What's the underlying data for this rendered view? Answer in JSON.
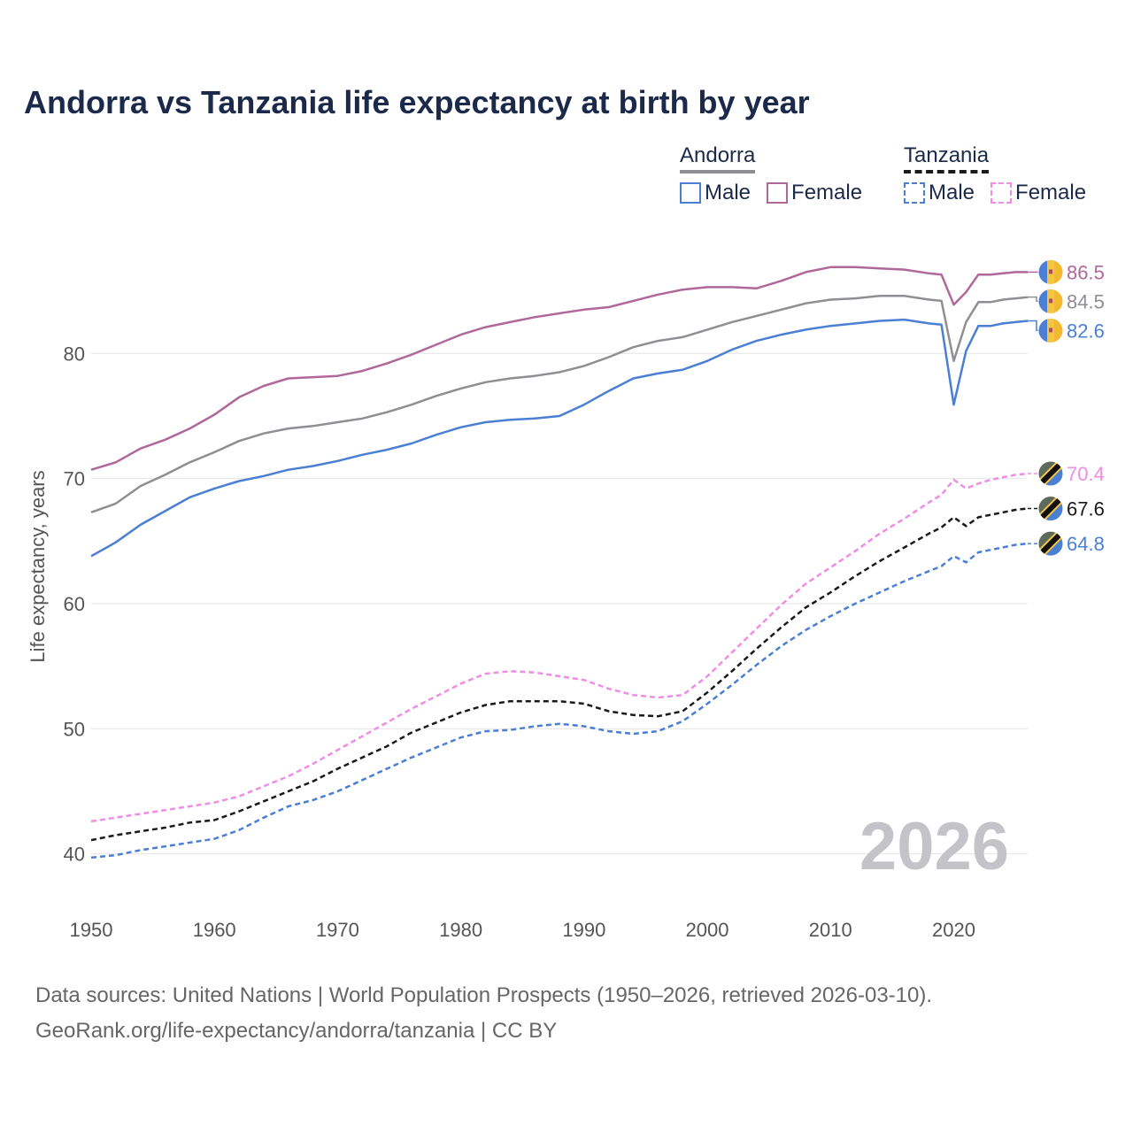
{
  "title": "Andorra vs Tanzania life expectancy at birth by year",
  "legend": {
    "andorra": {
      "label": "Andorra",
      "male": "Male",
      "female": "Female"
    },
    "tanzania": {
      "label": "Tanzania",
      "male": "Male",
      "female": "Female"
    }
  },
  "year_watermark": "2026",
  "source": {
    "line1": "Data sources: United Nations | World Population Prospects (1950–2026, retrieved 2026-03-10).",
    "line2": "GeoRank.org/life-expectancy/andorra/tanzania | CC BY"
  },
  "colors": {
    "male": "#4a7fd4",
    "female_andorra": "#b0679a",
    "both_andorra": "#8e8e93",
    "female_tanzania": "#f08ce6",
    "both_tanzania": "#1a1a1a"
  },
  "chart_data": {
    "type": "line",
    "ylabel": "Life expectancy, years",
    "xlabel": "",
    "xlim": [
      1950,
      2026
    ],
    "ylim": [
      37.5,
      89.5
    ],
    "x_ticks": [
      1950,
      1960,
      1970,
      1980,
      1990,
      2000,
      2010,
      2020
    ],
    "y_ticks": [
      40,
      50,
      60,
      70,
      80
    ],
    "grid": true,
    "series": [
      {
        "name": "Andorra Female",
        "country": "andorra",
        "sex": "female",
        "dashed": false,
        "end_label": "86.5",
        "points": [
          [
            1950,
            70.7
          ],
          [
            1952,
            71.3
          ],
          [
            1954,
            72.4
          ],
          [
            1956,
            73.1
          ],
          [
            1958,
            74.0
          ],
          [
            1960,
            75.1
          ],
          [
            1962,
            76.5
          ],
          [
            1964,
            77.4
          ],
          [
            1966,
            78.0
          ],
          [
            1968,
            78.1
          ],
          [
            1970,
            78.2
          ],
          [
            1972,
            78.6
          ],
          [
            1974,
            79.2
          ],
          [
            1976,
            79.9
          ],
          [
            1978,
            80.7
          ],
          [
            1980,
            81.5
          ],
          [
            1982,
            82.1
          ],
          [
            1984,
            82.5
          ],
          [
            1986,
            82.9
          ],
          [
            1988,
            83.2
          ],
          [
            1990,
            83.5
          ],
          [
            1992,
            83.7
          ],
          [
            1994,
            84.2
          ],
          [
            1996,
            84.7
          ],
          [
            1998,
            85.1
          ],
          [
            2000,
            85.3
          ],
          [
            2002,
            85.3
          ],
          [
            2004,
            85.2
          ],
          [
            2006,
            85.8
          ],
          [
            2008,
            86.5
          ],
          [
            2010,
            86.9
          ],
          [
            2012,
            86.9
          ],
          [
            2014,
            86.8
          ],
          [
            2016,
            86.7
          ],
          [
            2018,
            86.4
          ],
          [
            2019,
            86.3
          ],
          [
            2020,
            83.9
          ],
          [
            2021,
            84.9
          ],
          [
            2022,
            86.3
          ],
          [
            2023,
            86.3
          ],
          [
            2024,
            86.4
          ],
          [
            2025,
            86.5
          ],
          [
            2026,
            86.5
          ]
        ]
      },
      {
        "name": "Andorra Both",
        "country": "andorra",
        "sex": "both",
        "dashed": false,
        "end_label": "84.5",
        "points": [
          [
            1950,
            67.3
          ],
          [
            1952,
            68.0
          ],
          [
            1954,
            69.4
          ],
          [
            1956,
            70.3
          ],
          [
            1958,
            71.3
          ],
          [
            1960,
            72.1
          ],
          [
            1962,
            73.0
          ],
          [
            1964,
            73.6
          ],
          [
            1966,
            74.0
          ],
          [
            1968,
            74.2
          ],
          [
            1970,
            74.5
          ],
          [
            1972,
            74.8
          ],
          [
            1974,
            75.3
          ],
          [
            1976,
            75.9
          ],
          [
            1978,
            76.6
          ],
          [
            1980,
            77.2
          ],
          [
            1982,
            77.7
          ],
          [
            1984,
            78.0
          ],
          [
            1986,
            78.2
          ],
          [
            1988,
            78.5
          ],
          [
            1990,
            79.0
          ],
          [
            1992,
            79.7
          ],
          [
            1994,
            80.5
          ],
          [
            1996,
            81.0
          ],
          [
            1998,
            81.3
          ],
          [
            2000,
            81.9
          ],
          [
            2002,
            82.5
          ],
          [
            2004,
            83.0
          ],
          [
            2006,
            83.5
          ],
          [
            2008,
            84.0
          ],
          [
            2010,
            84.3
          ],
          [
            2012,
            84.4
          ],
          [
            2014,
            84.6
          ],
          [
            2016,
            84.6
          ],
          [
            2018,
            84.3
          ],
          [
            2019,
            84.2
          ],
          [
            2020,
            79.4
          ],
          [
            2021,
            82.5
          ],
          [
            2022,
            84.1
          ],
          [
            2023,
            84.1
          ],
          [
            2024,
            84.3
          ],
          [
            2025,
            84.4
          ],
          [
            2026,
            84.5
          ]
        ]
      },
      {
        "name": "Andorra Male",
        "country": "andorra",
        "sex": "male",
        "dashed": false,
        "end_label": "82.6",
        "points": [
          [
            1950,
            63.8
          ],
          [
            1952,
            64.9
          ],
          [
            1954,
            66.3
          ],
          [
            1956,
            67.4
          ],
          [
            1958,
            68.5
          ],
          [
            1960,
            69.2
          ],
          [
            1962,
            69.8
          ],
          [
            1964,
            70.2
          ],
          [
            1966,
            70.7
          ],
          [
            1968,
            71.0
          ],
          [
            1970,
            71.4
          ],
          [
            1972,
            71.9
          ],
          [
            1974,
            72.3
          ],
          [
            1976,
            72.8
          ],
          [
            1978,
            73.5
          ],
          [
            1980,
            74.1
          ],
          [
            1982,
            74.5
          ],
          [
            1984,
            74.7
          ],
          [
            1986,
            74.8
          ],
          [
            1988,
            75.0
          ],
          [
            1990,
            75.9
          ],
          [
            1992,
            77.0
          ],
          [
            1994,
            78.0
          ],
          [
            1996,
            78.4
          ],
          [
            1998,
            78.7
          ],
          [
            2000,
            79.4
          ],
          [
            2002,
            80.3
          ],
          [
            2004,
            81.0
          ],
          [
            2006,
            81.5
          ],
          [
            2008,
            81.9
          ],
          [
            2010,
            82.2
          ],
          [
            2012,
            82.4
          ],
          [
            2014,
            82.6
          ],
          [
            2016,
            82.7
          ],
          [
            2018,
            82.4
          ],
          [
            2019,
            82.3
          ],
          [
            2020,
            75.9
          ],
          [
            2021,
            80.2
          ],
          [
            2022,
            82.2
          ],
          [
            2023,
            82.2
          ],
          [
            2024,
            82.4
          ],
          [
            2025,
            82.5
          ],
          [
            2026,
            82.6
          ]
        ]
      },
      {
        "name": "Tanzania Female",
        "country": "tanzania",
        "sex": "female",
        "dashed": true,
        "end_label": "70.4",
        "points": [
          [
            1950,
            42.6
          ],
          [
            1952,
            42.9
          ],
          [
            1954,
            43.2
          ],
          [
            1956,
            43.5
          ],
          [
            1958,
            43.8
          ],
          [
            1960,
            44.1
          ],
          [
            1962,
            44.6
          ],
          [
            1964,
            45.4
          ],
          [
            1966,
            46.2
          ],
          [
            1968,
            47.2
          ],
          [
            1970,
            48.3
          ],
          [
            1972,
            49.4
          ],
          [
            1974,
            50.5
          ],
          [
            1976,
            51.6
          ],
          [
            1978,
            52.6
          ],
          [
            1980,
            53.6
          ],
          [
            1982,
            54.4
          ],
          [
            1984,
            54.6
          ],
          [
            1986,
            54.5
          ],
          [
            1988,
            54.2
          ],
          [
            1990,
            53.9
          ],
          [
            1992,
            53.2
          ],
          [
            1994,
            52.7
          ],
          [
            1996,
            52.5
          ],
          [
            1998,
            52.7
          ],
          [
            2000,
            54.2
          ],
          [
            2002,
            56.1
          ],
          [
            2004,
            58.0
          ],
          [
            2006,
            59.9
          ],
          [
            2008,
            61.6
          ],
          [
            2010,
            62.9
          ],
          [
            2012,
            64.2
          ],
          [
            2014,
            65.6
          ],
          [
            2016,
            66.8
          ],
          [
            2018,
            68.1
          ],
          [
            2019,
            68.7
          ],
          [
            2020,
            69.9
          ],
          [
            2021,
            69.2
          ],
          [
            2022,
            69.6
          ],
          [
            2023,
            69.9
          ],
          [
            2024,
            70.1
          ],
          [
            2025,
            70.3
          ],
          [
            2026,
            70.4
          ]
        ]
      },
      {
        "name": "Tanzania Both",
        "country": "tanzania",
        "sex": "both",
        "dashed": true,
        "end_label": "67.6",
        "points": [
          [
            1950,
            41.1
          ],
          [
            1952,
            41.5
          ],
          [
            1954,
            41.8
          ],
          [
            1956,
            42.1
          ],
          [
            1958,
            42.5
          ],
          [
            1960,
            42.7
          ],
          [
            1962,
            43.4
          ],
          [
            1964,
            44.2
          ],
          [
            1966,
            45.0
          ],
          [
            1968,
            45.8
          ],
          [
            1970,
            46.8
          ],
          [
            1972,
            47.7
          ],
          [
            1974,
            48.6
          ],
          [
            1976,
            49.7
          ],
          [
            1978,
            50.5
          ],
          [
            1980,
            51.3
          ],
          [
            1982,
            51.9
          ],
          [
            1984,
            52.2
          ],
          [
            1986,
            52.2
          ],
          [
            1988,
            52.2
          ],
          [
            1990,
            52.0
          ],
          [
            1992,
            51.4
          ],
          [
            1994,
            51.1
          ],
          [
            1996,
            51.0
          ],
          [
            1998,
            51.4
          ],
          [
            2000,
            52.9
          ],
          [
            2002,
            54.6
          ],
          [
            2004,
            56.4
          ],
          [
            2006,
            58.1
          ],
          [
            2008,
            59.7
          ],
          [
            2010,
            60.9
          ],
          [
            2012,
            62.2
          ],
          [
            2014,
            63.4
          ],
          [
            2016,
            64.5
          ],
          [
            2018,
            65.6
          ],
          [
            2019,
            66.1
          ],
          [
            2020,
            66.9
          ],
          [
            2021,
            66.2
          ],
          [
            2022,
            66.9
          ],
          [
            2023,
            67.1
          ],
          [
            2024,
            67.3
          ],
          [
            2025,
            67.5
          ],
          [
            2026,
            67.6
          ]
        ]
      },
      {
        "name": "Tanzania Male",
        "country": "tanzania",
        "sex": "male",
        "dashed": true,
        "end_label": "64.8",
        "points": [
          [
            1950,
            39.7
          ],
          [
            1952,
            39.9
          ],
          [
            1954,
            40.3
          ],
          [
            1956,
            40.6
          ],
          [
            1958,
            40.9
          ],
          [
            1960,
            41.2
          ],
          [
            1962,
            41.9
          ],
          [
            1964,
            42.9
          ],
          [
            1966,
            43.8
          ],
          [
            1968,
            44.3
          ],
          [
            1970,
            45.0
          ],
          [
            1972,
            45.9
          ],
          [
            1974,
            46.8
          ],
          [
            1976,
            47.7
          ],
          [
            1978,
            48.5
          ],
          [
            1980,
            49.3
          ],
          [
            1982,
            49.8
          ],
          [
            1984,
            49.9
          ],
          [
            1986,
            50.2
          ],
          [
            1988,
            50.4
          ],
          [
            1990,
            50.2
          ],
          [
            1992,
            49.8
          ],
          [
            1994,
            49.6
          ],
          [
            1996,
            49.8
          ],
          [
            1998,
            50.6
          ],
          [
            2000,
            52.0
          ],
          [
            2002,
            53.5
          ],
          [
            2004,
            55.1
          ],
          [
            2006,
            56.6
          ],
          [
            2008,
            57.9
          ],
          [
            2010,
            59.0
          ],
          [
            2012,
            60.0
          ],
          [
            2014,
            60.9
          ],
          [
            2016,
            61.8
          ],
          [
            2018,
            62.6
          ],
          [
            2019,
            63.0
          ],
          [
            2020,
            63.8
          ],
          [
            2021,
            63.3
          ],
          [
            2022,
            64.1
          ],
          [
            2023,
            64.3
          ],
          [
            2024,
            64.5
          ],
          [
            2025,
            64.7
          ],
          [
            2026,
            64.8
          ]
        ]
      }
    ]
  }
}
